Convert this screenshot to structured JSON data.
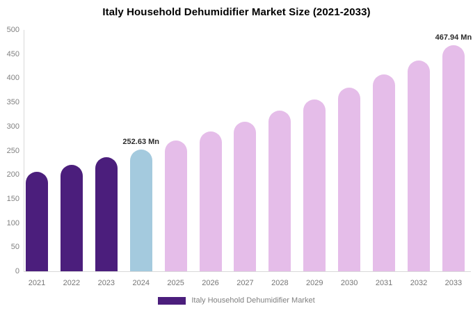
{
  "title": "Italy Household Dehumidifier Market Size (2021-2033)",
  "chart_data": {
    "type": "bar",
    "title": "Italy Household Dehumidifier Market Size (2021-2033)",
    "categories": [
      "2021",
      "2022",
      "2023",
      "2024",
      "2025",
      "2026",
      "2027",
      "2028",
      "2029",
      "2030",
      "2031",
      "2032",
      "2033"
    ],
    "values": [
      205.7,
      220.3,
      236.0,
      252.63,
      270.5,
      289.7,
      310.2,
      332.2,
      355.7,
      380.9,
      407.9,
      436.8,
      467.94
    ],
    "unit": "Mn",
    "value_labels": [
      {
        "category": "2024",
        "text": "252.63 Mn"
      },
      {
        "category": "2033",
        "text": "467.94 Mn"
      }
    ],
    "ylim": [
      0,
      500
    ],
    "yticks": [
      0,
      50,
      100,
      150,
      200,
      250,
      300,
      350,
      400,
      450,
      500
    ],
    "grid": false,
    "legend": "Italy Household Dehumidifier Market",
    "legend_position": "bottom",
    "bar_colors": [
      "#4b1e7c",
      "#4b1e7c",
      "#4b1e7c",
      "#a4cade",
      "#e5bde9",
      "#e5bde9",
      "#e5bde9",
      "#e5bde9",
      "#e5bde9",
      "#e5bde9",
      "#e5bde9",
      "#e5bde9",
      "#e5bde9"
    ]
  },
  "colors": {
    "historical_bar": "#4b1e7c",
    "current_year_bar": "#a4cade",
    "forecast_bar": "#e5bde9",
    "axis_text": "#808080",
    "x_axis_text": "#757575",
    "axis_line": "#d9d9d9",
    "value_label_text": "#2b2b2b",
    "legend_swatch": "#4b1e7c",
    "legend_text": "#808080",
    "title_text": "#000000",
    "background": "#ffffff"
  }
}
